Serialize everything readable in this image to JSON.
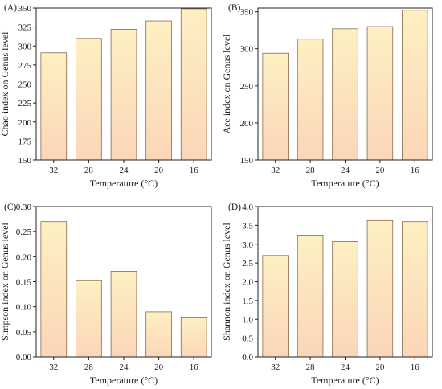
{
  "chart_data": [
    {
      "type": "bar",
      "tag": "(A)",
      "categories": [
        "32",
        "28",
        "24",
        "20",
        "16"
      ],
      "values": [
        291,
        310,
        322,
        333,
        349
      ],
      "xlabel": "Temperature (°C)",
      "ylabel": "Chao index on Genus level",
      "ylim": [
        150,
        350
      ],
      "yticks": [
        "150",
        "175",
        "200",
        "225",
        "250",
        "275",
        "300",
        "325",
        "350"
      ]
    },
    {
      "type": "bar",
      "tag": "(B)",
      "categories": [
        "32",
        "28",
        "24",
        "20",
        "16"
      ],
      "values": [
        294,
        313,
        327,
        330,
        352
      ],
      "xlabel": "Temperature (°C)",
      "ylabel": "Ace index on Genus level",
      "ylim": [
        150,
        355
      ],
      "yticks": [
        "150",
        "200",
        "250",
        "300",
        "350"
      ]
    },
    {
      "type": "bar",
      "tag": "(C)",
      "categories": [
        "32",
        "28",
        "24",
        "20",
        "16"
      ],
      "values": [
        0.27,
        0.152,
        0.171,
        0.09,
        0.078
      ],
      "xlabel": "Temperature (°C)",
      "ylabel": "Simpson index on Genus level",
      "ylim": [
        0,
        0.3
      ],
      "yticks": [
        "0.00",
        "0.05",
        "0.10",
        "0.15",
        "0.20",
        "0.25",
        "0.30"
      ]
    },
    {
      "type": "bar",
      "tag": "(D)",
      "categories": [
        "32",
        "28",
        "24",
        "20",
        "16"
      ],
      "values": [
        2.7,
        3.22,
        3.07,
        3.63,
        3.6
      ],
      "xlabel": "Temperature (°C)",
      "ylabel": "Shannon index on Genus level",
      "ylim": [
        0,
        4.0
      ],
      "yticks": [
        "0.0",
        "0.5",
        "1.0",
        "1.5",
        "2.0",
        "2.5",
        "3.0",
        "3.5",
        "4.0"
      ]
    }
  ],
  "colors": {
    "bar_top": "#fdf0c2",
    "bar_bottom": "#fbd6b9",
    "bar_edge": "#8a6a4a"
  }
}
